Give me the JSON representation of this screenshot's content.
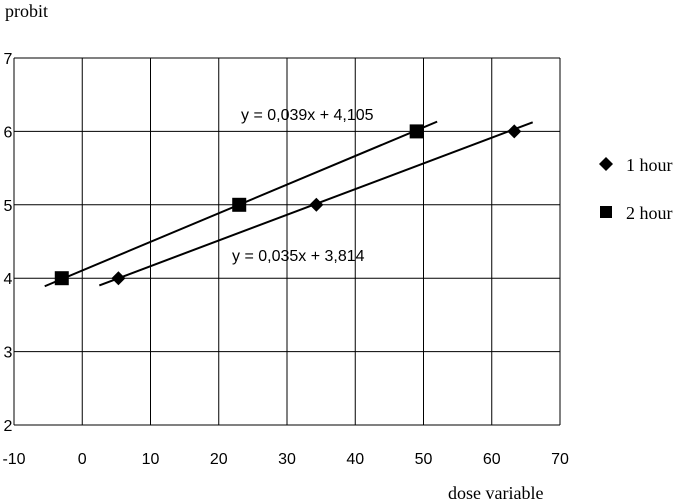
{
  "chart_data": {
    "type": "scatter",
    "xlabel": "dose variable",
    "ylabel": "probit",
    "xlim": [
      -10,
      70
    ],
    "ylim": [
      2,
      7
    ],
    "x_ticks": [
      "-10",
      "0",
      "10",
      "20",
      "30",
      "40",
      "50",
      "60",
      "70"
    ],
    "y_ticks": [
      "2",
      "3",
      "4",
      "5",
      "6",
      "7"
    ],
    "grid": true,
    "legend_position": "right",
    "series": [
      {
        "name": "1 hour",
        "marker": "diamond",
        "color": "#000000",
        "x": [
          5.3,
          34.3,
          63.3
        ],
        "y": [
          4,
          5,
          6
        ],
        "trendline": {
          "slope": 0.035,
          "intercept": 3.814,
          "x_range": [
            2.5,
            66
          ],
          "equation": "y = 0,035x + 3,814"
        }
      },
      {
        "name": "2 hour",
        "marker": "square",
        "color": "#000000",
        "x": [
          -3,
          23,
          49
        ],
        "y": [
          4,
          5,
          6
        ],
        "trendline": {
          "slope": 0.039,
          "intercept": 4.105,
          "x_range": [
            -5.5,
            52
          ],
          "equation": "y = 0,039x + 4,105"
        }
      }
    ]
  }
}
